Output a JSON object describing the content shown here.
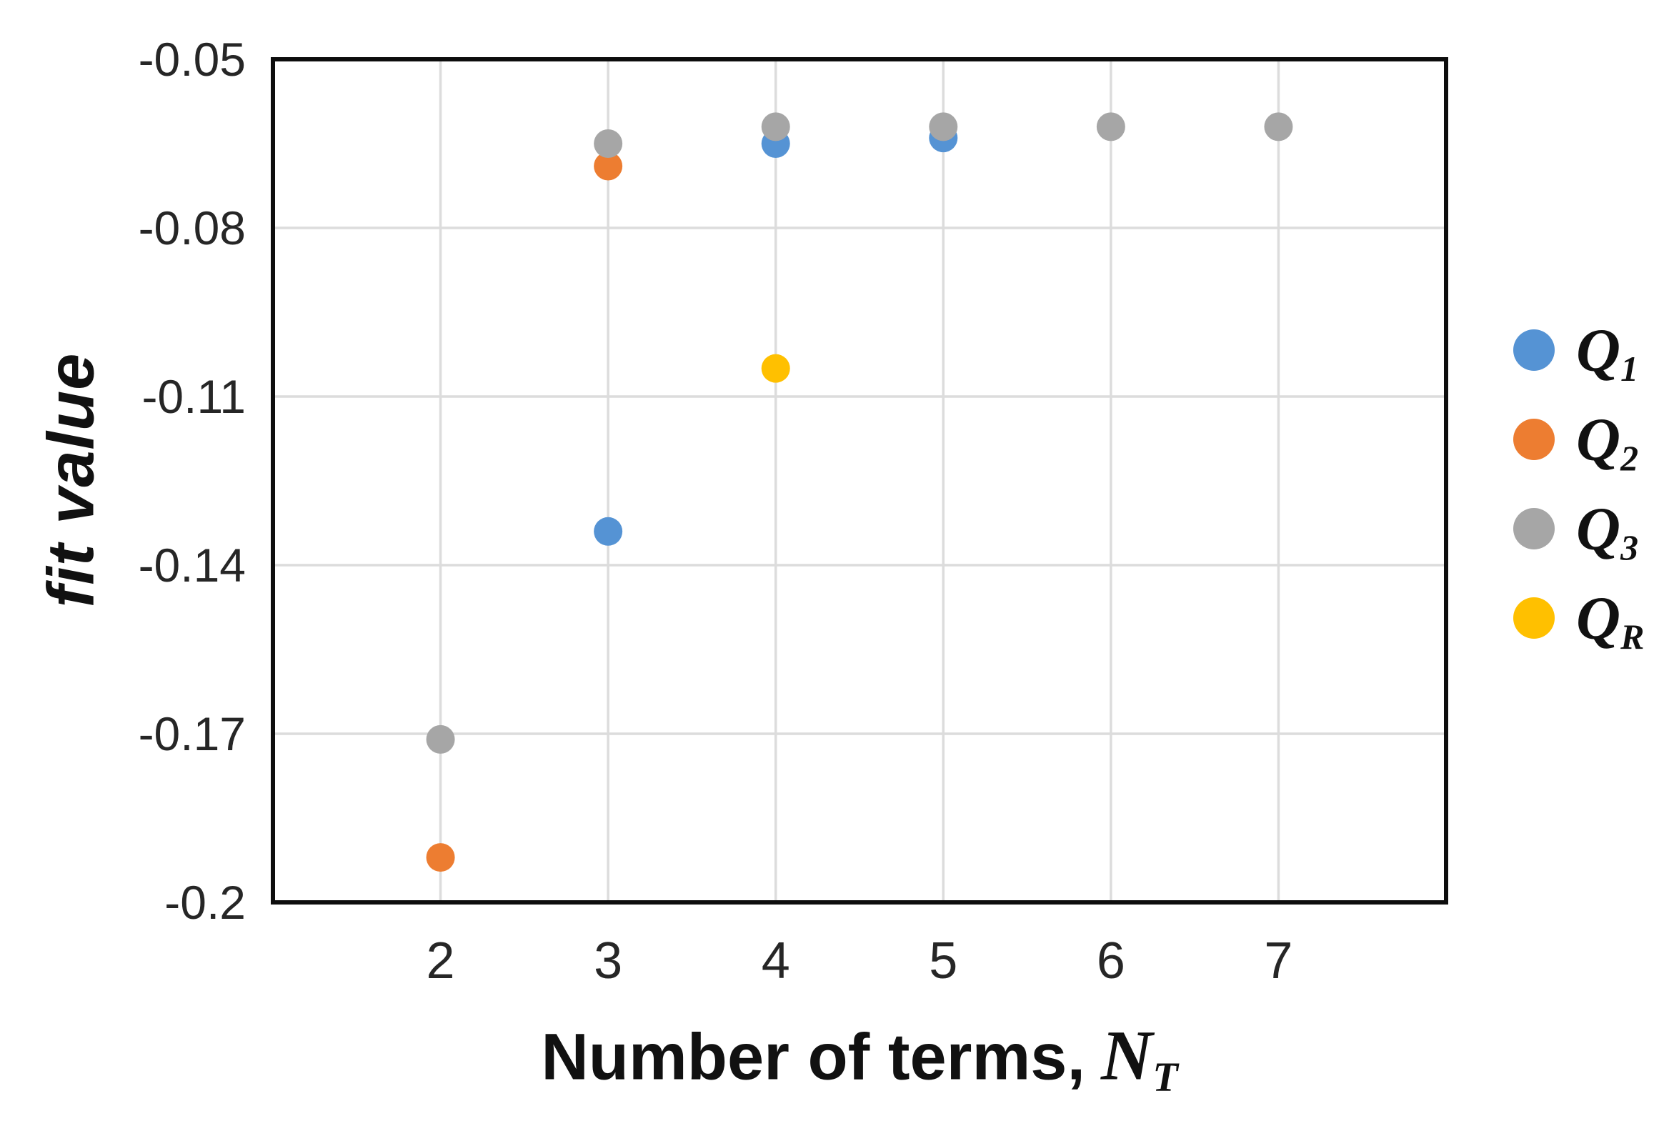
{
  "chart_data": {
    "type": "scatter",
    "title": "",
    "xlabel": "Number of terms, N_T",
    "ylabel": "fit value",
    "xlabel_parts": {
      "main": "Number of terms,",
      "var": "N",
      "sub": "T"
    },
    "x_ticks": [
      2,
      3,
      4,
      5,
      6,
      7
    ],
    "x_tick_labels": [
      "2",
      "3",
      "4",
      "5",
      "6",
      "7"
    ],
    "y_ticks": [
      -0.05,
      -0.08,
      -0.11,
      -0.14,
      -0.17,
      -0.2
    ],
    "y_tick_labels": [
      "-0.05",
      "-0.08",
      "-0.11",
      "-0.14",
      "-0.17",
      "-0.2"
    ],
    "xlim": [
      1,
      8
    ],
    "ylim": [
      -0.2,
      -0.05
    ],
    "grid": true,
    "legend_position": "right",
    "colors": {
      "grid": "#DCDCDC",
      "border": "#0D0D0D",
      "tick_text": "#262626",
      "title_text": "#111111",
      "background": "#FFFFFF"
    },
    "series": [
      {
        "name": "Q1",
        "label_main": "Q",
        "label_sub": "1",
        "color": "#5593D4",
        "points": [
          {
            "x": 3,
            "y": -0.134
          },
          {
            "x": 4,
            "y": -0.065
          },
          {
            "x": 5,
            "y": -0.064
          }
        ]
      },
      {
        "name": "Q2",
        "label_main": "Q",
        "label_sub": "2",
        "color": "#ED7D31",
        "points": [
          {
            "x": 2,
            "y": -0.192
          },
          {
            "x": 3,
            "y": -0.069
          }
        ]
      },
      {
        "name": "Q3",
        "label_main": "Q",
        "label_sub": "3",
        "color": "#A6A6A6",
        "points": [
          {
            "x": 2,
            "y": -0.171
          },
          {
            "x": 3,
            "y": -0.065
          },
          {
            "x": 4,
            "y": -0.062
          },
          {
            "x": 5,
            "y": -0.062
          },
          {
            "x": 6,
            "y": -0.062
          },
          {
            "x": 7,
            "y": -0.062
          }
        ]
      },
      {
        "name": "QR",
        "label_main": "Q",
        "label_sub": "R",
        "color": "#FFC000",
        "points": [
          {
            "x": 4,
            "y": -0.105
          }
        ]
      }
    ]
  }
}
